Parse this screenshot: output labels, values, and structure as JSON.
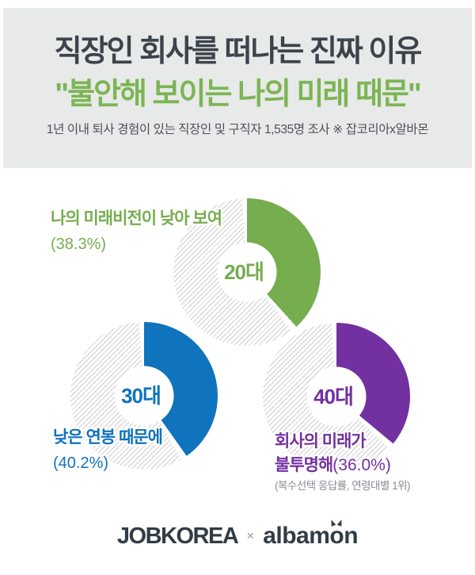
{
  "header": {
    "title_line1": "직장인 회사를 떠나는 진짜 이유",
    "title_line2": "\"불안해 보이는 나의 미래 때문\"",
    "subtitle": "1년 이내 퇴사 경험이 있는 직장인 및 구직자 1,535명 조사 ※ 잡코리아x알바몬"
  },
  "chart_data": {
    "type": "pie",
    "variant": "donut",
    "title": "직장인 회사를 떠나는 진짜 이유",
    "unit": "%",
    "series": [
      {
        "age_group": "20대",
        "label": "나의 미래비전이 낮아 보여",
        "value": 38.3,
        "color": "#76ad4f"
      },
      {
        "age_group": "30대",
        "label": "낮은 연봉 때문에",
        "value": 40.2,
        "color": "#0f73bd"
      },
      {
        "age_group": "40대",
        "label": "회사의 미래가 불투명해",
        "value": 36.0,
        "color": "#7330a0"
      }
    ],
    "segment_start": "12-oclock-clockwise",
    "remainder_style": "diagonal-hatch",
    "note": "(복수선택 응답률, 연령대별 1위)"
  },
  "labels": {
    "g20": {
      "line1": "나의 미래비전이 낮아 보여",
      "pct": "(38.3%)"
    },
    "g30": {
      "line1": "낮은 연봉 때문에",
      "pct": "(40.2%)"
    },
    "g40": {
      "line1": "회사의 미래가",
      "line2_bold": "불투명해",
      "pct": "(36.0%)",
      "note": "(복수선택 응답률, 연령대별 1위)"
    }
  },
  "footer": {
    "jobkorea": "JOBKOREA",
    "separator": "×",
    "albamon_pre": "albam",
    "albamon_o": "o",
    "albamon_post": "n"
  },
  "colors": {
    "title": "#3c434b",
    "title_green": "#7cb553",
    "subtitle": "#4c5257",
    "header_background": "#e8e9e9",
    "green": "#76ad4f",
    "blue": "#0f73bd",
    "purple": "#7330a0",
    "note_grey": "#8b8b93",
    "logo_navy": "#323c46",
    "hatch_grey": "#d9d9d9"
  }
}
